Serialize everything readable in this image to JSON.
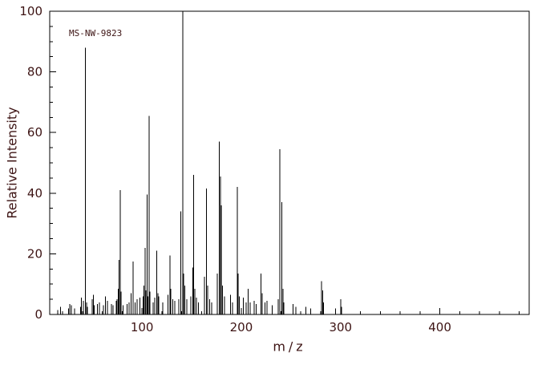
{
  "annotation": "MS-NW-9823",
  "colors": {
    "line": "#000000",
    "text": "#3d1414",
    "background": "#ffffff"
  },
  "chart_data": {
    "type": "bar",
    "subtype": "mass-spectrum-stick-plot",
    "title": "",
    "xlabel": "m/z",
    "ylabel": "Relative Intensity",
    "xlim": [
      7,
      490
    ],
    "ylim": [
      0,
      100
    ],
    "x_major_ticks": [
      100,
      200,
      300,
      400
    ],
    "x_minor_step": 20,
    "y_major_ticks": [
      0,
      20,
      40,
      60,
      80,
      100
    ],
    "y_minor_step": 5,
    "grid": false,
    "legend": "none",
    "peaks": [
      [
        15,
        1.5
      ],
      [
        18,
        2.5
      ],
      [
        26,
        2
      ],
      [
        27,
        3.5
      ],
      [
        29,
        3
      ],
      [
        32,
        2
      ],
      [
        38,
        2.5
      ],
      [
        39,
        5.5
      ],
      [
        41,
        4.5
      ],
      [
        43,
        88
      ],
      [
        44,
        4
      ],
      [
        45,
        2.5
      ],
      [
        50,
        5
      ],
      [
        51,
        6.5
      ],
      [
        52,
        3
      ],
      [
        55,
        3.5
      ],
      [
        57,
        4
      ],
      [
        61,
        3
      ],
      [
        63,
        6
      ],
      [
        65,
        4.5
      ],
      [
        69,
        3.5
      ],
      [
        71,
        3
      ],
      [
        74,
        4.5
      ],
      [
        75,
        5
      ],
      [
        76,
        8.5
      ],
      [
        77,
        18
      ],
      [
        78,
        41
      ],
      [
        79,
        7.5
      ],
      [
        81,
        3
      ],
      [
        85,
        3.5
      ],
      [
        87,
        4
      ],
      [
        89,
        7
      ],
      [
        91,
        17.5
      ],
      [
        93,
        4
      ],
      [
        95,
        5
      ],
      [
        98,
        5.5
      ],
      [
        101,
        6
      ],
      [
        102,
        9.5
      ],
      [
        103,
        22
      ],
      [
        104,
        8
      ],
      [
        105,
        39.5
      ],
      [
        106,
        6
      ],
      [
        107,
        65.5
      ],
      [
        108,
        7.5
      ],
      [
        111,
        4
      ],
      [
        113,
        5.5
      ],
      [
        115,
        21
      ],
      [
        116,
        7
      ],
      [
        117,
        6
      ],
      [
        121,
        4
      ],
      [
        126,
        6.5
      ],
      [
        128,
        19.5
      ],
      [
        129,
        8.5
      ],
      [
        131,
        5
      ],
      [
        133,
        4.5
      ],
      [
        137,
        5
      ],
      [
        139,
        34
      ],
      [
        141,
        100
      ],
      [
        142,
        13.5
      ],
      [
        143,
        9.5
      ],
      [
        145,
        5
      ],
      [
        149,
        6
      ],
      [
        151,
        15.5
      ],
      [
        152,
        46
      ],
      [
        153,
        8.5
      ],
      [
        155,
        5.5
      ],
      [
        157,
        4
      ],
      [
        163,
        12.5
      ],
      [
        165,
        41.5
      ],
      [
        166,
        9.5
      ],
      [
        168,
        5
      ],
      [
        170,
        4
      ],
      [
        176,
        13.5
      ],
      [
        178,
        57
      ],
      [
        179,
        45.5
      ],
      [
        180,
        36
      ],
      [
        181,
        9.5
      ],
      [
        183,
        6
      ],
      [
        189,
        6.5
      ],
      [
        191,
        4
      ],
      [
        196,
        42
      ],
      [
        197,
        13.5
      ],
      [
        198,
        6
      ],
      [
        202,
        5.5
      ],
      [
        205,
        4
      ],
      [
        207,
        8.5
      ],
      [
        209,
        4
      ],
      [
        213,
        4.5
      ],
      [
        215,
        3.5
      ],
      [
        220,
        13.5
      ],
      [
        221,
        7
      ],
      [
        224,
        4
      ],
      [
        226,
        4.5
      ],
      [
        231,
        3
      ],
      [
        237,
        5
      ],
      [
        239,
        54.5
      ],
      [
        241,
        37
      ],
      [
        242,
        8.5
      ],
      [
        243,
        4
      ],
      [
        252,
        3.5
      ],
      [
        255,
        2.5
      ],
      [
        265,
        2.5
      ],
      [
        270,
        2
      ],
      [
        281,
        11
      ],
      [
        282,
        8
      ],
      [
        283,
        4
      ],
      [
        295,
        2
      ],
      [
        300,
        5
      ],
      [
        301,
        2.5
      ]
    ]
  }
}
